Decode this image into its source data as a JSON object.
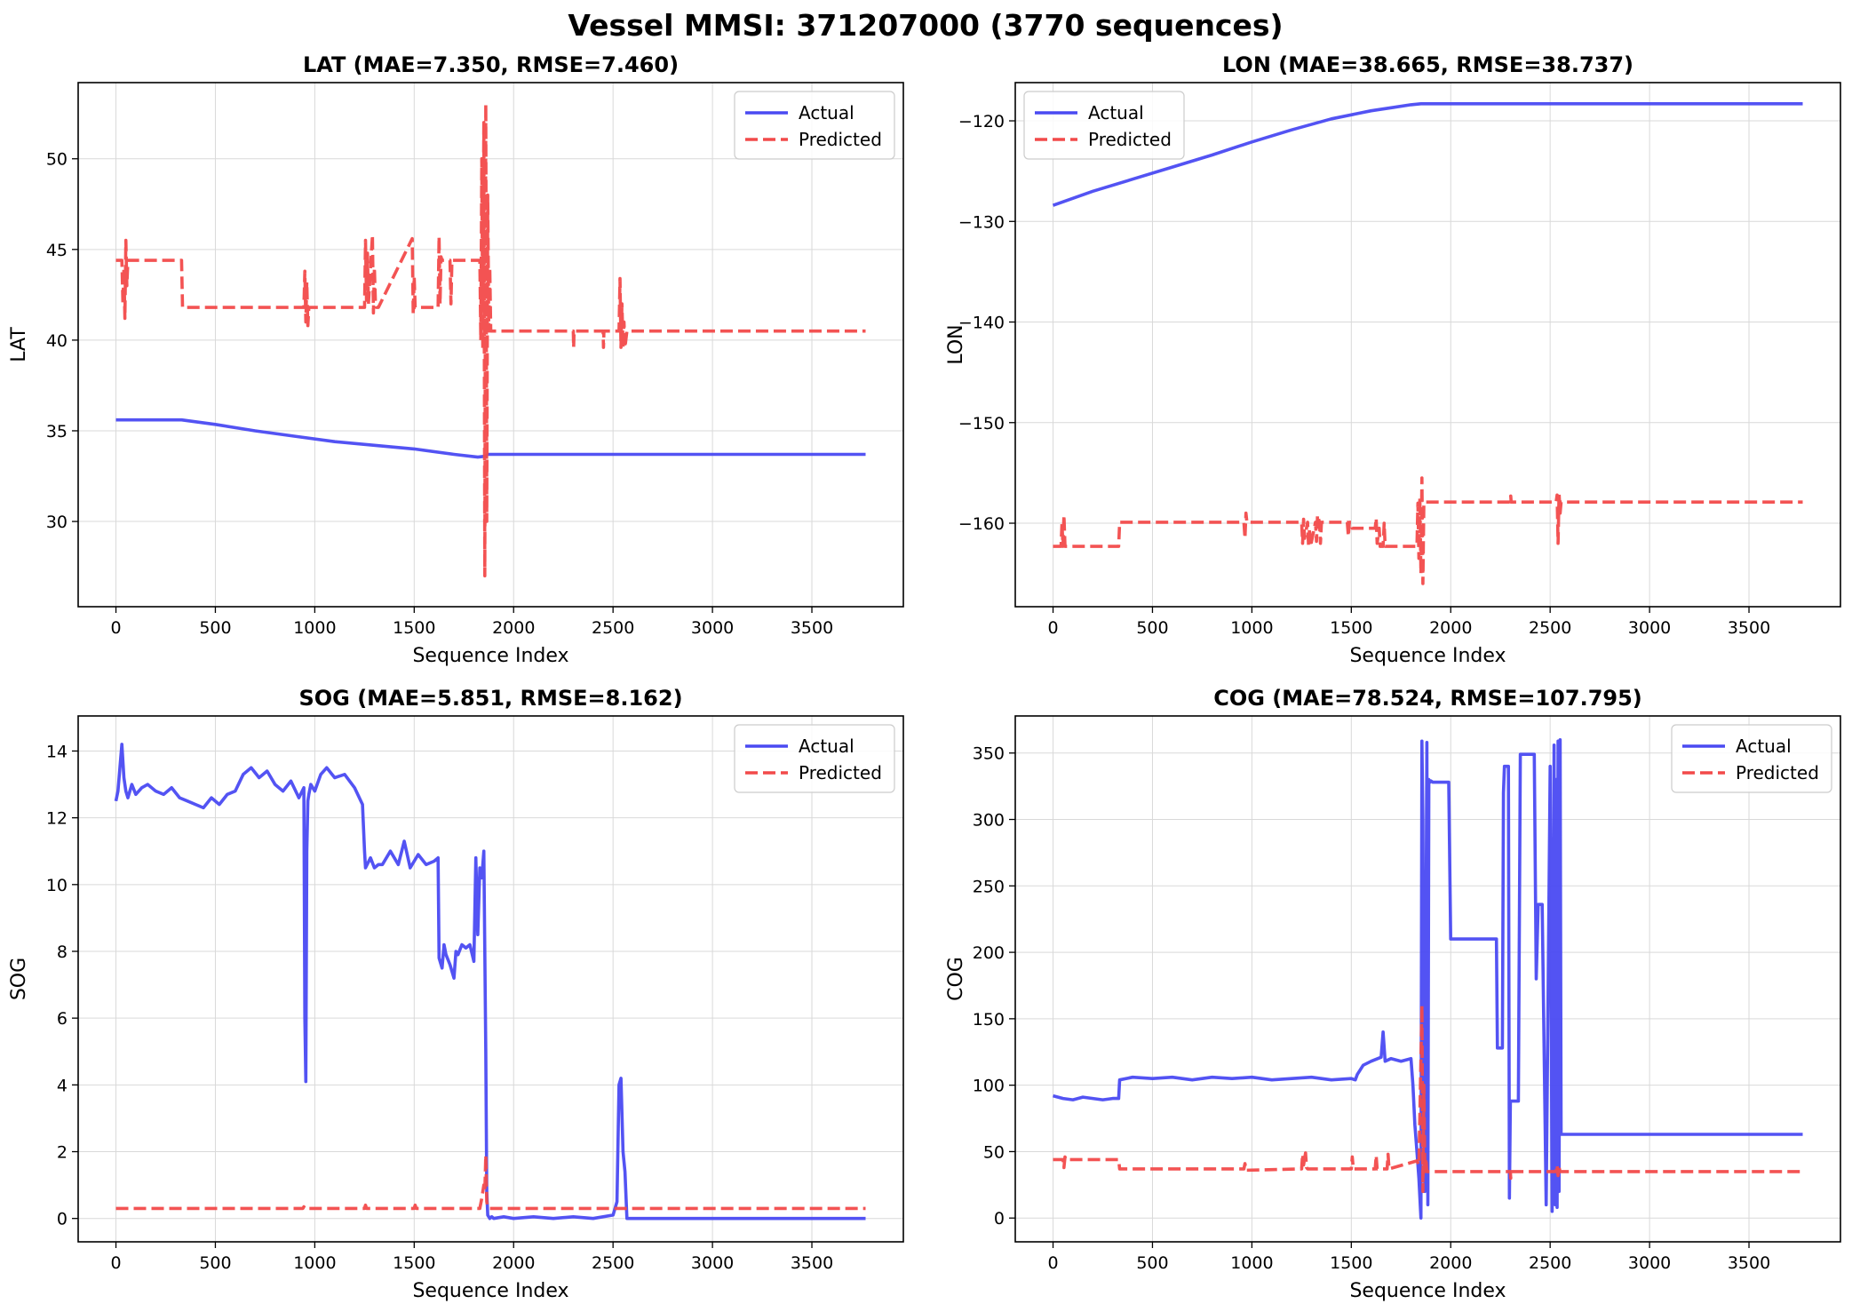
{
  "figure": {
    "suptitle": "Vessel MMSI: 371207000 (3770 sequences)"
  },
  "colors": {
    "actual": "#4a4af2",
    "predicted": "#f24a4a"
  },
  "legend": {
    "actual": "Actual",
    "predicted": "Predicted"
  },
  "chart_data": [
    {
      "type": "line",
      "id": "lat",
      "title": "LAT (MAE=7.350, RMSE=7.460)",
      "xlabel": "Sequence Index",
      "ylabel": "LAT",
      "xlim": [
        -190,
        3960
      ],
      "ylim": [
        25.3,
        54.2
      ],
      "xticks": [
        0,
        500,
        1000,
        1500,
        2000,
        2500,
        3000,
        3500
      ],
      "yticks": [
        30,
        35,
        40,
        45,
        50
      ],
      "yticklabels": [
        "30",
        "35",
        "40",
        "45",
        "50"
      ],
      "grid": true,
      "legend_position": "upper right",
      "series": [
        {
          "name": "Actual",
          "style": "solid",
          "x": [
            0,
            100,
            200,
            330,
            500,
            700,
            900,
            1100,
            1300,
            1500,
            1700,
            1820,
            1860,
            1870,
            2000,
            2500,
            3000,
            3500,
            3770
          ],
          "y": [
            35.6,
            35.6,
            35.6,
            35.6,
            35.35,
            35.0,
            34.7,
            34.4,
            34.2,
            34.0,
            33.7,
            33.55,
            33.6,
            33.7,
            33.7,
            33.7,
            33.7,
            33.7,
            33.7
          ]
        },
        {
          "name": "Predicted",
          "style": "dashed",
          "x": [
            0,
            30,
            35,
            40,
            45,
            50,
            55,
            60,
            65,
            330,
            335,
            945,
            950,
            955,
            960,
            965,
            970,
            1250,
            1255,
            1260,
            1265,
            1270,
            1290,
            1295,
            1300,
            1305,
            1310,
            1320,
            1490,
            1495,
            1500,
            1505,
            1510,
            1620,
            1625,
            1630,
            1635,
            1640,
            1680,
            1685,
            1690,
            1830,
            1835,
            1840,
            1845,
            1850,
            1855,
            1860,
            1865,
            1870,
            1875,
            1880,
            1885,
            2300,
            2302,
            2304,
            2306,
            2450,
            2452,
            2454,
            2456,
            2530,
            2535,
            2540,
            2545,
            2550,
            2555,
            2560,
            2570,
            3770
          ],
          "y": [
            44.4,
            44.4,
            42.0,
            44.0,
            41.2,
            45.5,
            43.0,
            44.4,
            44.4,
            44.4,
            41.8,
            41.8,
            43.8,
            41.0,
            43.2,
            40.8,
            41.8,
            41.8,
            45.5,
            42.2,
            44.8,
            42.0,
            45.8,
            41.5,
            44.0,
            42.0,
            41.8,
            41.8,
            45.6,
            41.4,
            43.5,
            41.8,
            41.8,
            41.8,
            45.7,
            42.0,
            44.6,
            44.4,
            44.4,
            42.0,
            44.4,
            44.4,
            40.0,
            50.0,
            39.5,
            52.0,
            27.0,
            53.0,
            30.0,
            48.0,
            40.5,
            44.0,
            40.5,
            40.5,
            39.6,
            40.5,
            40.5,
            40.5,
            39.6,
            40.5,
            40.5,
            40.5,
            43.4,
            39.6,
            42.0,
            39.6,
            41.0,
            39.6,
            40.5,
            40.5
          ]
        }
      ]
    },
    {
      "type": "line",
      "id": "lon",
      "title": "LON (MAE=38.665, RMSE=38.737)",
      "xlabel": "Sequence Index",
      "ylabel": "LON",
      "xlim": [
        -190,
        3960
      ],
      "ylim": [
        -168.3,
        -116.2
      ],
      "xticks": [
        0,
        500,
        1000,
        1500,
        2000,
        2500,
        3000,
        3500
      ],
      "yticks": [
        -160,
        -150,
        -140,
        -130,
        -120
      ],
      "yticklabels": [
        "−160",
        "−150",
        "−140",
        "−130",
        "−120"
      ],
      "grid": true,
      "legend_position": "upper left",
      "series": [
        {
          "name": "Actual",
          "style": "solid",
          "x": [
            0,
            200,
            400,
            600,
            800,
            1000,
            1200,
            1400,
            1600,
            1700,
            1800,
            1850,
            1900,
            2500,
            3000,
            3500,
            3770
          ],
          "y": [
            -128.4,
            -127.0,
            -125.8,
            -124.6,
            -123.4,
            -122.1,
            -120.9,
            -119.8,
            -119.0,
            -118.7,
            -118.4,
            -118.3,
            -118.3,
            -118.3,
            -118.3,
            -118.3,
            -118.3
          ]
        },
        {
          "name": "Predicted",
          "style": "dashed",
          "x": [
            0,
            40,
            45,
            50,
            55,
            60,
            330,
            335,
            960,
            965,
            970,
            975,
            1250,
            1255,
            1260,
            1265,
            1280,
            1285,
            1290,
            1295,
            1320,
            1325,
            1330,
            1340,
            1345,
            1350,
            1480,
            1485,
            1490,
            1500,
            1505,
            1620,
            1625,
            1630,
            1640,
            1645,
            1660,
            1665,
            1670,
            1830,
            1835,
            1840,
            1845,
            1850,
            1855,
            1860,
            1865,
            1870,
            1875,
            1880,
            2300,
            2302,
            2304,
            2530,
            2535,
            2540,
            2545,
            2550,
            2555,
            2560,
            3770
          ],
          "y": [
            -162.3,
            -162.3,
            -160.0,
            -162.3,
            -159.2,
            -162.3,
            -162.3,
            -159.9,
            -159.9,
            -161.5,
            -159.0,
            -159.9,
            -159.9,
            -162.0,
            -159.6,
            -161.5,
            -159.9,
            -162.3,
            -160.5,
            -162.3,
            -159.9,
            -161.8,
            -159.2,
            -159.9,
            -162.0,
            -159.9,
            -159.9,
            -161.3,
            -159.9,
            -159.9,
            -160.5,
            -160.5,
            -159.5,
            -162.0,
            -160.5,
            -162.3,
            -162.3,
            -160.0,
            -162.3,
            -162.3,
            -158.0,
            -163.5,
            -157.5,
            -165.0,
            -155.5,
            -166.0,
            -158.0,
            -157.9,
            -157.9,
            -157.9,
            -157.9,
            -157.3,
            -157.9,
            -157.9,
            -157.2,
            -162.0,
            -157.0,
            -159.0,
            -157.9,
            -157.9,
            -157.9
          ]
        }
      ]
    },
    {
      "type": "line",
      "id": "sog",
      "title": "SOG (MAE=5.851, RMSE=8.162)",
      "xlabel": "Sequence Index",
      "ylabel": "SOG",
      "xlim": [
        -190,
        3960
      ],
      "ylim": [
        -0.7,
        15.05
      ],
      "xticks": [
        0,
        500,
        1000,
        1500,
        2000,
        2500,
        3000,
        3500
      ],
      "yticks": [
        0,
        2,
        4,
        6,
        8,
        10,
        12,
        14
      ],
      "yticklabels": [
        "0",
        "2",
        "4",
        "6",
        "8",
        "10",
        "12",
        "14"
      ],
      "grid": true,
      "legend_position": "upper right",
      "series": [
        {
          "name": "Actual",
          "style": "solid",
          "x": [
            0,
            10,
            20,
            30,
            40,
            50,
            60,
            80,
            100,
            130,
            160,
            200,
            240,
            280,
            320,
            360,
            400,
            440,
            480,
            520,
            560,
            600,
            640,
            680,
            720,
            760,
            800,
            840,
            880,
            920,
            945,
            950,
            955,
            960,
            965,
            970,
            980,
            1000,
            1030,
            1060,
            1100,
            1150,
            1200,
            1240,
            1250,
            1255,
            1280,
            1300,
            1320,
            1340,
            1380,
            1420,
            1450,
            1480,
            1520,
            1560,
            1600,
            1620,
            1625,
            1640,
            1650,
            1660,
            1680,
            1700,
            1710,
            1720,
            1740,
            1760,
            1780,
            1800,
            1810,
            1820,
            1830,
            1840,
            1850,
            1860,
            1865,
            1870,
            1880,
            1890,
            1900,
            1950,
            2000,
            2100,
            2200,
            2300,
            2400,
            2500,
            2520,
            2530,
            2540,
            2550,
            2560,
            2570,
            2600,
            2700,
            3000,
            3500,
            3770
          ],
          "y": [
            12.5,
            12.8,
            13.5,
            14.2,
            13.2,
            12.8,
            12.6,
            13.0,
            12.7,
            12.9,
            13.0,
            12.8,
            12.7,
            12.9,
            12.6,
            12.5,
            12.4,
            12.3,
            12.6,
            12.4,
            12.7,
            12.8,
            13.3,
            13.5,
            13.2,
            13.4,
            13.0,
            12.8,
            13.1,
            12.6,
            12.9,
            6.0,
            4.1,
            11.0,
            12.5,
            12.7,
            13.0,
            12.8,
            13.3,
            13.5,
            13.2,
            13.3,
            12.9,
            12.4,
            11.0,
            10.5,
            10.8,
            10.5,
            10.6,
            10.6,
            11.0,
            10.6,
            11.3,
            10.5,
            10.9,
            10.6,
            10.7,
            10.8,
            7.8,
            7.5,
            8.2,
            7.9,
            7.6,
            7.2,
            8.0,
            7.9,
            8.2,
            8.1,
            8.2,
            7.7,
            10.8,
            8.5,
            10.5,
            10.2,
            11.0,
            5.0,
            0.8,
            0.1,
            0.0,
            0.05,
            0.0,
            0.05,
            0.0,
            0.05,
            0.0,
            0.05,
            0.0,
            0.1,
            0.5,
            4.0,
            4.2,
            2.0,
            1.4,
            0.0,
            0.0,
            0.0,
            0.0,
            0.0,
            0.0
          ]
        },
        {
          "name": "Predicted",
          "style": "dashed",
          "x": [
            0,
            940,
            945,
            950,
            1250,
            1255,
            1260,
            1500,
            1505,
            1510,
            1830,
            1840,
            1850,
            1855,
            1860,
            1865,
            1870,
            1880,
            3770
          ],
          "y": [
            0.3,
            0.3,
            0.35,
            0.3,
            0.3,
            0.4,
            0.3,
            0.3,
            0.4,
            0.3,
            0.3,
            0.6,
            1.0,
            0.8,
            1.9,
            0.5,
            0.35,
            0.3,
            0.3
          ]
        }
      ]
    },
    {
      "type": "line",
      "id": "cog",
      "title": "COG (MAE=78.524, RMSE=107.795)",
      "xlabel": "Sequence Index",
      "ylabel": "COG",
      "xlim": [
        -190,
        3960
      ],
      "ylim": [
        -17.9,
        377.9
      ],
      "xticks": [
        0,
        500,
        1000,
        1500,
        2000,
        2500,
        3000,
        3500
      ],
      "yticks": [
        0,
        50,
        100,
        150,
        200,
        250,
        300,
        350
      ],
      "yticklabels": [
        "0",
        "50",
        "100",
        "150",
        "200",
        "250",
        "300",
        "350"
      ],
      "grid": true,
      "legend_position": "upper right",
      "series": [
        {
          "name": "Actual",
          "style": "solid",
          "x": [
            0,
            50,
            100,
            150,
            200,
            250,
            300,
            330,
            335,
            400,
            500,
            600,
            700,
            800,
            900,
            1000,
            1100,
            1200,
            1300,
            1400,
            1500,
            1520,
            1530,
            1560,
            1600,
            1650,
            1660,
            1670,
            1700,
            1750,
            1800,
            1810,
            1820,
            1830,
            1840,
            1850,
            1855,
            1860,
            1865,
            1870,
            1880,
            1885,
            1890,
            1895,
            1900,
            1910,
            1990,
            2000,
            2005,
            2230,
            2235,
            2260,
            2265,
            2270,
            2280,
            2290,
            2295,
            2300,
            2310,
            2340,
            2350,
            2360,
            2420,
            2430,
            2440,
            2450,
            2460,
            2480,
            2500,
            2510,
            2520,
            2525,
            2530,
            2535,
            2540,
            2545,
            2550,
            2555,
            2560,
            2565,
            2570,
            2580,
            3000,
            3500,
            3770
          ],
          "y": [
            92,
            90,
            89,
            91,
            90,
            89,
            90,
            90,
            104,
            106,
            105,
            106,
            104,
            106,
            105,
            106,
            104,
            105,
            106,
            104,
            105,
            104,
            108,
            115,
            118,
            121,
            140,
            118,
            120,
            118,
            120,
            100,
            70,
            50,
            30,
            0,
            359,
            300,
            120,
            20,
            358,
            10,
            330,
            328,
            329,
            328,
            328,
            210,
            210,
            210,
            128,
            128,
            320,
            340,
            340,
            340,
            15,
            88,
            88,
            88,
            349,
            349,
            349,
            180,
            236,
            236,
            236,
            10,
            340,
            5,
            356,
            10,
            330,
            8,
            359,
            20,
            360,
            63,
            63,
            63,
            63,
            63,
            63,
            63,
            63
          ]
        },
        {
          "name": "Predicted",
          "style": "dashed",
          "x": [
            0,
            50,
            55,
            60,
            65,
            330,
            335,
            960,
            965,
            970,
            1250,
            1255,
            1260,
            1270,
            1275,
            1280,
            1500,
            1505,
            1510,
            1620,
            1625,
            1630,
            1680,
            1685,
            1690,
            1830,
            1840,
            1850,
            1855,
            1860,
            1865,
            1870,
            1875,
            1880,
            2300,
            2302,
            2304,
            2530,
            2535,
            2540,
            2545,
            2550,
            3770
          ],
          "y": [
            44,
            44,
            38,
            46,
            44,
            44,
            37,
            37,
            41,
            36,
            37,
            48,
            40,
            49,
            38,
            37,
            37,
            46,
            37,
            37,
            47,
            37,
            37,
            48,
            37,
            43,
            40,
            120,
            160,
            20,
            100,
            35,
            45,
            35,
            35,
            30,
            35,
            35,
            40,
            32,
            38,
            35,
            35
          ]
        }
      ]
    }
  ]
}
